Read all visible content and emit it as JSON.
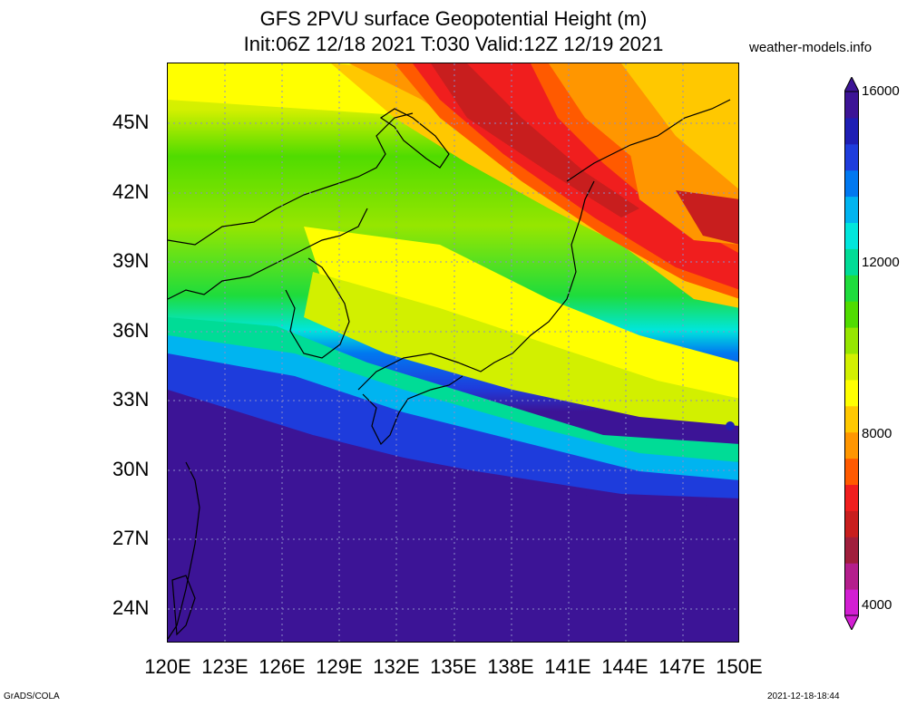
{
  "title": {
    "line1": "GFS 2PVU surface Geopotential Height (m)",
    "line2": "Init:06Z 12/18 2021 T:030 Valid:12Z 12/19 2021"
  },
  "site": "weather-models.info",
  "lat_labels": [
    "45N",
    "42N",
    "39N",
    "36N",
    "33N",
    "30N",
    "27N",
    "24N"
  ],
  "lon_labels": [
    "120E",
    "123E",
    "126E",
    "129E",
    "132E",
    "135E",
    "138E",
    "141E",
    "144E",
    "147E",
    "150E"
  ],
  "colorbar": {
    "labels": [
      "16000",
      "12000",
      "8000",
      "4000"
    ],
    "colors": [
      "#d21ed2",
      "#b41e8c",
      "#a01e3c",
      "#c81e1e",
      "#f01e1e",
      "#ff5a00",
      "#ff9600",
      "#ffc800",
      "#ffff00",
      "#d2f000",
      "#96e600",
      "#50dc00",
      "#1edc3c",
      "#00dc96",
      "#00e6dc",
      "#00b4f0",
      "#0078f0",
      "#1e3cdc",
      "#1e1eb4",
      "#3c1496"
    ]
  },
  "footer": {
    "left": "GrADS/COLA",
    "right": "2021-12-18-18:44"
  }
}
